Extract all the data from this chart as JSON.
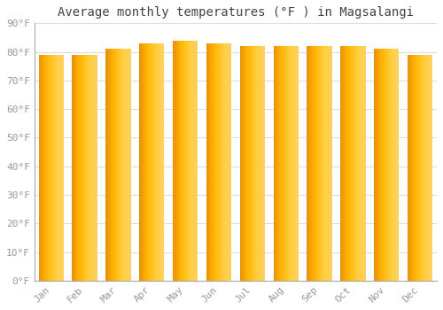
{
  "title": "Average monthly temperatures (°F ) in Magsalangi",
  "months": [
    "Jan",
    "Feb",
    "Mar",
    "Apr",
    "May",
    "Jun",
    "Jul",
    "Aug",
    "Sep",
    "Oct",
    "Nov",
    "Dec"
  ],
  "values": [
    79,
    79,
    81,
    83,
    84,
    83,
    82,
    82,
    82,
    82,
    81,
    79
  ],
  "bar_color_left": "#E8920A",
  "bar_color_mid": "#FFB300",
  "bar_color_right": "#FFCF40",
  "background_color": "#FFFFFF",
  "plot_bg_color": "#FFFFFF",
  "grid_color": "#DDDDDD",
  "title_fontsize": 10,
  "tick_fontsize": 8,
  "ylabel_ticks": [
    0,
    10,
    20,
    30,
    40,
    50,
    60,
    70,
    80,
    90
  ],
  "ylim": [
    0,
    90
  ],
  "font_family": "monospace",
  "bar_width": 0.75
}
